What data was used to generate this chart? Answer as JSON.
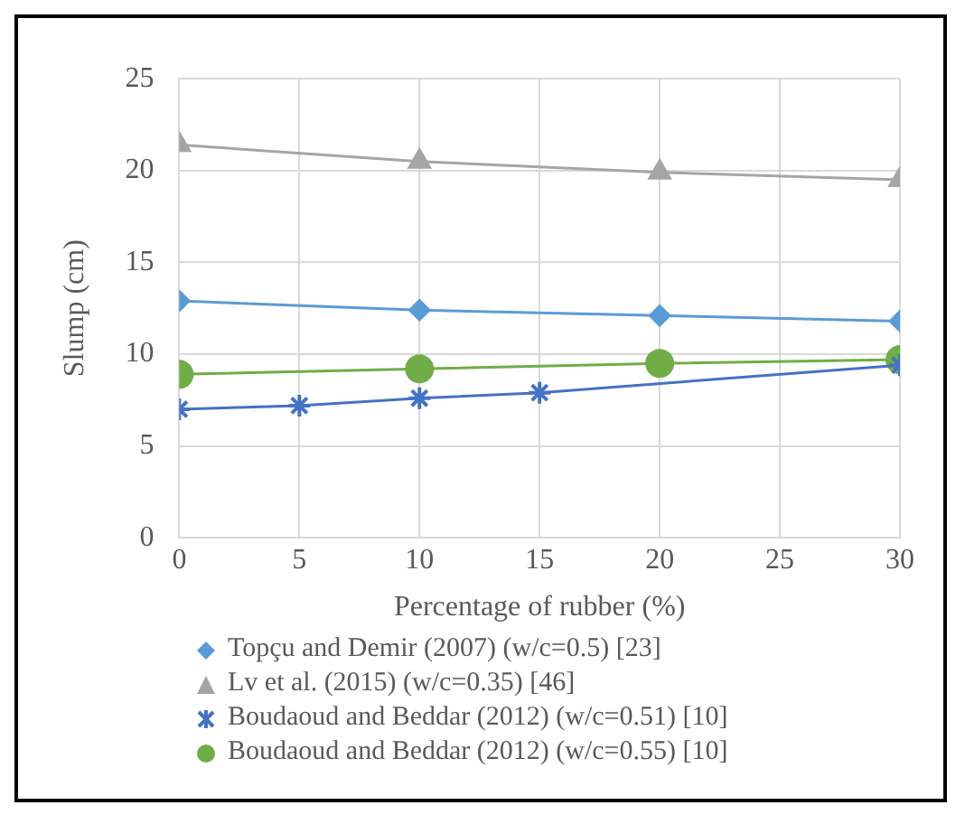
{
  "chart_data": {
    "type": "line",
    "xlabel": "Percentage of rubber (%)",
    "ylabel": "Slump (cm)",
    "xlim": [
      0,
      30
    ],
    "xticks": [
      0,
      5,
      10,
      15,
      20,
      25,
      30
    ],
    "ylim": [
      0,
      25
    ],
    "yticks": [
      0,
      5,
      10,
      15,
      20,
      25
    ],
    "grid": true,
    "legend": "bottom",
    "series": [
      {
        "name": "Topçu and Demir (2007) (w/c=0.5) [23]",
        "color": "#5b9bd5",
        "marker": "diamond",
        "x": [
          0,
          10,
          20,
          30
        ],
        "values": [
          12.9,
          12.4,
          12.1,
          11.8
        ]
      },
      {
        "name": "Lv et al. (2015) (w/c=0.35) [46]",
        "color": "#a5a5a5",
        "marker": "triangle",
        "x": [
          0,
          10,
          20,
          30
        ],
        "values": [
          21.4,
          20.5,
          19.9,
          19.5
        ]
      },
      {
        "name": "Boudaoud and Beddar (2012) (w/c=0.51) [10]",
        "color": "#4472c4",
        "marker": "cross",
        "x": [
          0,
          5,
          10,
          15,
          30
        ],
        "values": [
          7,
          7.2,
          7.6,
          7.9,
          9.4
        ]
      },
      {
        "name": "Boudaoud and Beddar (2012) (w/c=0.55) [10]",
        "color": "#70ad47",
        "marker": "circle",
        "x": [
          0,
          10,
          20,
          30
        ],
        "values": [
          8.9,
          9.2,
          9.5,
          9.7
        ]
      }
    ]
  }
}
